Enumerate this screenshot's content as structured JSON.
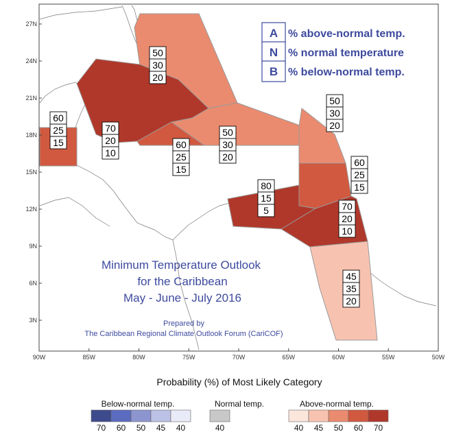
{
  "map": {
    "title_lines": [
      "Minimum Temperature Outlook",
      "for the Caribbean",
      "May - June - July 2016"
    ],
    "prepared_lines": [
      "Prepared by",
      "The Caribbean Regional Climate Outlook Forum (CariCOF)"
    ],
    "lat_labels": [
      "3N",
      "6N",
      "9N",
      "12N",
      "15N",
      "18N",
      "21N",
      "24N",
      "27N"
    ],
    "lon_labels": [
      "90W",
      "85W",
      "80W",
      "75W",
      "70W",
      "65W",
      "60W",
      "55W",
      "50W"
    ],
    "key": [
      {
        "letter": "A",
        "text": "% above-normal temp."
      },
      {
        "letter": "N",
        "text": "% normal temperature"
      },
      {
        "letter": "B",
        "text": "% below-normal temp."
      }
    ],
    "regions": [
      {
        "id": "bahamas",
        "probs": [
          "50",
          "30",
          "20"
        ],
        "category": "Above-normal",
        "dominant": "50"
      },
      {
        "id": "belize",
        "probs": [
          "60",
          "25",
          "15"
        ],
        "category": "Above-normal",
        "dominant": "60"
      },
      {
        "id": "cuba-cayman",
        "probs": [
          "70",
          "20",
          "10"
        ],
        "category": "Above-normal",
        "dominant": "70"
      },
      {
        "id": "jamaica",
        "probs": [
          "60",
          "25",
          "15"
        ],
        "category": "Above-normal",
        "dominant": "60"
      },
      {
        "id": "hispaniola-pr",
        "probs": [
          "50",
          "30",
          "20"
        ],
        "category": "Above-normal",
        "dominant": "50"
      },
      {
        "id": "leeward-islands",
        "probs": [
          "50",
          "30",
          "20"
        ],
        "category": "Above-normal",
        "dominant": "50"
      },
      {
        "id": "windward-islands",
        "probs": [
          "60",
          "25",
          "15"
        ],
        "category": "Above-normal",
        "dominant": "60"
      },
      {
        "id": "abc-islands",
        "probs": [
          "80",
          "15",
          "5"
        ],
        "category": "Above-normal",
        "dominant": "80"
      },
      {
        "id": "trinidad-tobago",
        "probs": [
          "70",
          "20",
          "10"
        ],
        "category": "Above-normal",
        "dominant": "70"
      },
      {
        "id": "guianas",
        "probs": [
          "45",
          "35",
          "20"
        ],
        "category": "Above-normal",
        "dominant": "45"
      }
    ]
  },
  "legend": {
    "title": "Probability (%) of Most Likely Category",
    "groups": [
      {
        "title": "Below-normal temp.",
        "colors": [
          "#3d4a8c",
          "#5b6bbf",
          "#8c95cf",
          "#bcc2e6",
          "#e9ebf8"
        ],
        "labels": [
          "70",
          "60",
          "50",
          "45",
          "40"
        ]
      },
      {
        "title": "Normal temp.",
        "colors": [
          "#c8c8c8"
        ],
        "labels": [
          "40"
        ]
      },
      {
        "title": "Above-normal temp.",
        "colors": [
          "#fbe6dc",
          "#f7c3b0",
          "#ea8b6f",
          "#d15940",
          "#b0382a"
        ],
        "labels": [
          "40",
          "45",
          "50",
          "60",
          "70"
        ]
      }
    ]
  },
  "colors": {
    "c45": "#f7c3b0",
    "c50": "#ea8b6f",
    "c60": "#d15940",
    "c70": "#b0382a",
    "c80": "#b0382a",
    "key_text": "#3d4a9e",
    "title_text": "#3d4a9e"
  }
}
